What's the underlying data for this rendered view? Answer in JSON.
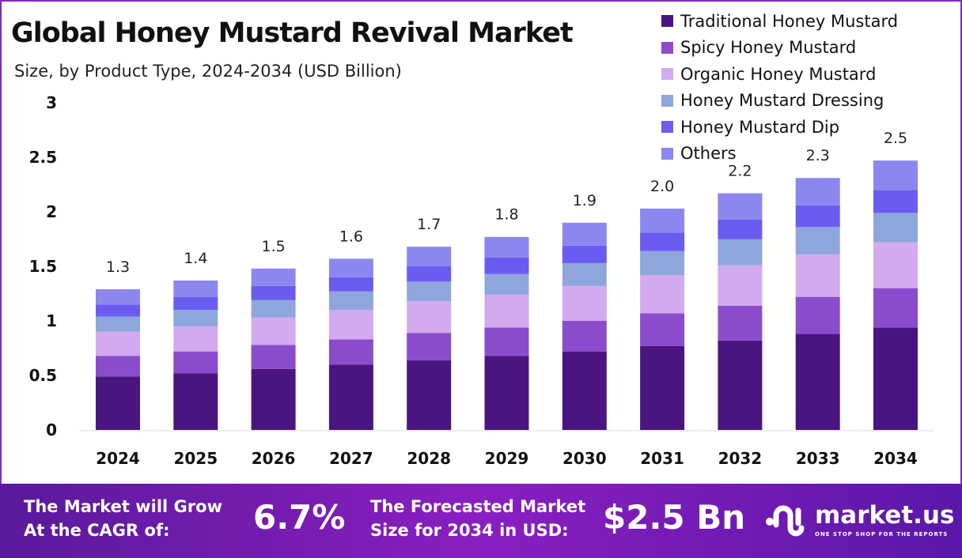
{
  "chart_data": {
    "type": "bar",
    "stacked": true,
    "title": "Global Honey Mustard Revival Market",
    "subtitle": "Size, by Product Type, 2024-2034 (USD Billion)",
    "categories": [
      "2024",
      "2025",
      "2026",
      "2027",
      "2028",
      "2029",
      "2030",
      "2031",
      "2032",
      "2033",
      "2034"
    ],
    "ylim": [
      0,
      3
    ],
    "yticks": [
      "0",
      "0.5",
      "1",
      "1.5",
      "2",
      "2.5",
      "3"
    ],
    "legend_position": "top-right",
    "grid": false,
    "totals_labels": [
      "1.3",
      "1.4",
      "1.5",
      "1.6",
      "1.7",
      "1.8",
      "1.9",
      "2.0",
      "2.2",
      "2.3",
      "2.5"
    ],
    "series": [
      {
        "name": "Traditional Honey Mustard",
        "color": "#4a1580",
        "values": [
          0.49,
          0.52,
          0.56,
          0.6,
          0.64,
          0.68,
          0.72,
          0.77,
          0.82,
          0.88,
          0.94
        ]
      },
      {
        "name": "Spicy Honey Mustard",
        "color": "#8a4ccc",
        "values": [
          0.19,
          0.2,
          0.22,
          0.23,
          0.25,
          0.26,
          0.28,
          0.3,
          0.32,
          0.34,
          0.36
        ]
      },
      {
        "name": "Organic Honey Mustard",
        "color": "#d2aaee",
        "values": [
          0.22,
          0.23,
          0.25,
          0.27,
          0.29,
          0.3,
          0.32,
          0.35,
          0.37,
          0.39,
          0.42
        ]
      },
      {
        "name": "Honey Mustard Dressing",
        "color": "#8fa6dc",
        "values": [
          0.14,
          0.15,
          0.16,
          0.17,
          0.18,
          0.19,
          0.21,
          0.22,
          0.24,
          0.25,
          0.27
        ]
      },
      {
        "name": "Honey Mustard Dip",
        "color": "#6a5cf0",
        "values": [
          0.11,
          0.12,
          0.13,
          0.13,
          0.14,
          0.15,
          0.16,
          0.17,
          0.18,
          0.2,
          0.21
        ]
      },
      {
        "name": "Others",
        "color": "#8c87f0",
        "values": [
          0.14,
          0.15,
          0.16,
          0.17,
          0.18,
          0.19,
          0.21,
          0.22,
          0.24,
          0.25,
          0.27
        ]
      }
    ]
  },
  "footer": {
    "cagr_label_1": "The Market will Grow",
    "cagr_label_2": "At the CAGR of:",
    "cagr_value": "6.7%",
    "forecast_label_1": "The Forecasted Market",
    "forecast_label_2": "Size for 2034 in USD:",
    "forecast_value": "$2.5 Bn",
    "logo_text": "market.us",
    "logo_tagline": "ONE STOP SHOP FOR THE REPORTS"
  }
}
